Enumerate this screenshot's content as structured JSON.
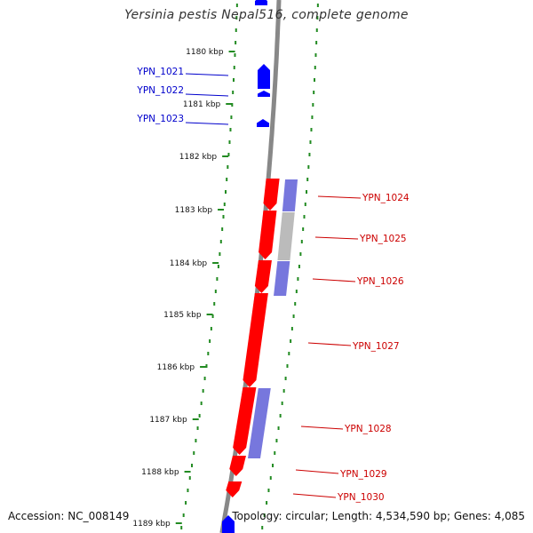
{
  "title": "Yersinia pestis Nepal516, complete genome",
  "footer": {
    "accession": "Accession: NC_008149",
    "topology": "Topology: circular; Length: 4,534,590 bp; Genes: 4,085"
  },
  "colors": {
    "forward_cds": "#0000ff",
    "reverse_cds": "#ff0000",
    "reverse_rna": "#7777dd",
    "gray_feature": "#bbbbbb",
    "backbone": "#888888",
    "scale_dots": "#228b22",
    "forward_label": "#0000cc",
    "reverse_label": "#cc0000"
  },
  "ruler_ticks": [
    "1180 kbp",
    "1181 kbp",
    "1182 kbp",
    "1183 kbp",
    "1184 kbp",
    "1185 kbp",
    "1186 kbp",
    "1187 kbp",
    "1188 kbp",
    "1189 kbp"
  ],
  "forward_genes": [
    "YPN_1021",
    "YPN_1022",
    "YPN_1023"
  ],
  "reverse_genes": [
    "YPN_1024",
    "YPN_1025",
    "YPN_1026",
    "YPN_1027",
    "YPN_1028",
    "YPN_1029",
    "YPN_1030"
  ]
}
